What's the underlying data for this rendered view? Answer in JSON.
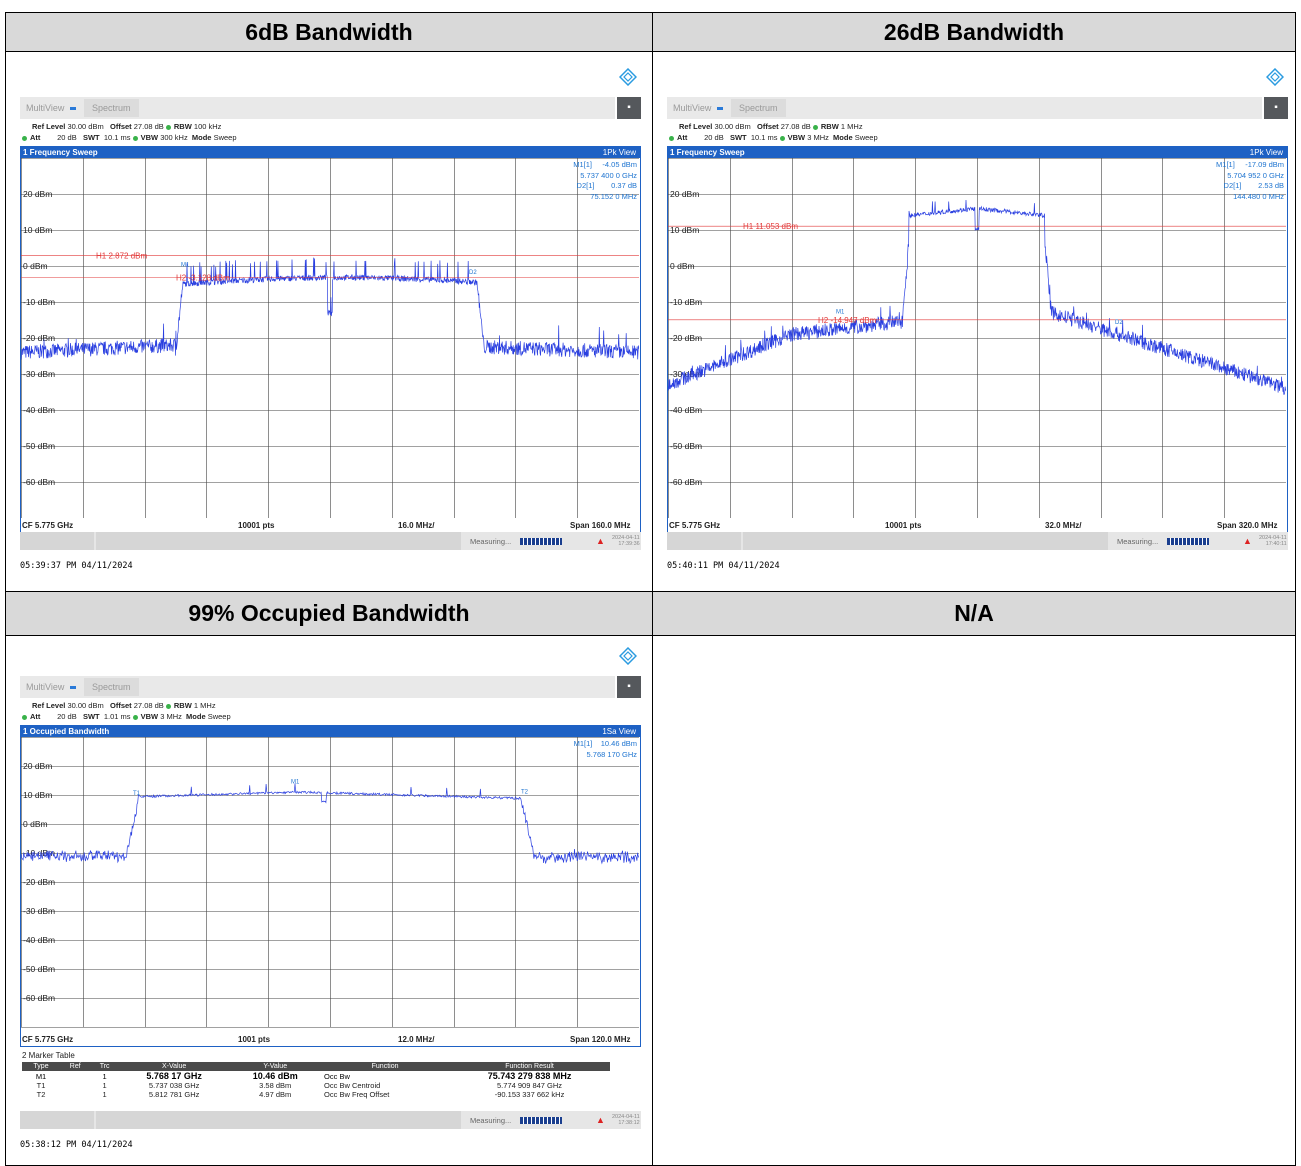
{
  "table": {
    "h1": "6dB Bandwidth",
    "h2": "26dB Bandwidth",
    "h3": "99% Occupied Bandwidth",
    "h4": "N/A"
  },
  "common": {
    "tab_multiview": "MultiView",
    "tab_spectrum": "Spectrum",
    "menu_glyph": "▪",
    "ref_level_label": "Ref Level",
    "offset_label": "Offset",
    "rbw_label": "RBW",
    "att_label": "Att",
    "swt_label": "SWT",
    "vbw_label": "VBW",
    "mode_label": "Mode",
    "mode_value": "Sweep",
    "measuring": "Measuring...",
    "y_labels": [
      "20 dBm",
      "10 dBm",
      "0 dBm",
      "-10 dBm",
      "-20 dBm",
      "-30 dBm",
      "-40 dBm",
      "-50 dBm",
      "-60 dBm"
    ]
  },
  "p1": {
    "ref_level": "30.00 dBm",
    "offset": "27.08 dB",
    "rbw": "100 kHz",
    "att": "20 dB",
    "swt": "10.1 ms",
    "vbw": "300 kHz",
    "title": "1 Frequency Sweep",
    "view": "1Pk View",
    "m1_label": "M1[1]",
    "m1_level": "-4.05 dBm",
    "m1_freq": "5.737 400 0 GHz",
    "d2_label": "D2[1]",
    "d2_level": "0.37 dB",
    "d2_freq": "75.152 0 MHz",
    "h1_line": "H1 2.872 dBm",
    "h2_line": "H2 -3.128 dBm",
    "cf": "CF 5.775 GHz",
    "pts": "10001 pts",
    "div": "16.0 MHz/",
    "span": "Span 160.0 MHz",
    "stamp_date": "2024-04-11",
    "stamp_time": "17:39:36",
    "timestamp": "05:39:37 PM  04/11/2024"
  },
  "p2": {
    "ref_level": "30.00 dBm",
    "offset": "27.08 dB",
    "rbw": "1 MHz",
    "att": "20 dB",
    "swt": "10.1 ms",
    "vbw": "3 MHz",
    "title": "1 Frequency Sweep",
    "view": "1Pk View",
    "m1_label": "M1[1]",
    "m1_level": "-17.09 dBm",
    "m1_freq": "5.704 952 0 GHz",
    "d2_label": "D2[1]",
    "d2_level": "2.53 dB",
    "d2_freq": "144.480 0 MHz",
    "h1_line": "H1 11.053 dBm",
    "h2_line": "H2 -14.947 dBm",
    "cf": "CF 5.775 GHz",
    "pts": "10001 pts",
    "div": "32.0 MHz/",
    "span": "Span 320.0 MHz",
    "stamp_date": "2024-04-11",
    "stamp_time": "17:40:11",
    "timestamp": "05:40:11 PM  04/11/2024"
  },
  "p3": {
    "ref_level": "30.00 dBm",
    "offset": "27.08 dB",
    "rbw": "1 MHz",
    "att": "20 dB",
    "swt": "1.01 ms",
    "vbw": "3 MHz",
    "title": "1 Occupied Bandwidth",
    "view": "1Sa View",
    "m1_label": "M1[1]",
    "m1_level": "10.46 dBm",
    "m1_freq": "5.768 170 GHz",
    "cf": "CF 5.775 GHz",
    "pts": "1001 pts",
    "div": "12.0 MHz/",
    "span": "Span 120.0 MHz",
    "stamp_date": "2024-04-11",
    "stamp_time": "17:38:12",
    "timestamp": "05:38:12 PM  04/11/2024",
    "marker_table_title": "2 Marker Table",
    "mt_headers": [
      "Type",
      "Ref",
      "Trc",
      "X-Value",
      "Y-Value",
      "Function",
      "Function Result"
    ],
    "mt_rows": [
      [
        "M1",
        "",
        "1",
        "5.768 17 GHz",
        "10.46 dBm",
        "Occ Bw",
        "75.743 279 838 MHz"
      ],
      [
        "T1",
        "",
        "1",
        "5.737 038 GHz",
        "3.58 dBm",
        "Occ Bw Centroid",
        "5.774 909 847 GHz"
      ],
      [
        "T2",
        "",
        "1",
        "5.812 781 GHz",
        "4.97 dBm",
        "Occ Bw Freq Offset",
        "-90.153 337 662 kHz"
      ]
    ]
  },
  "colors": {
    "trace": "#2a3fe0",
    "plot_border": "#1e61c4",
    "hline": "#e23a3a",
    "marker": "#1e74d0"
  }
}
